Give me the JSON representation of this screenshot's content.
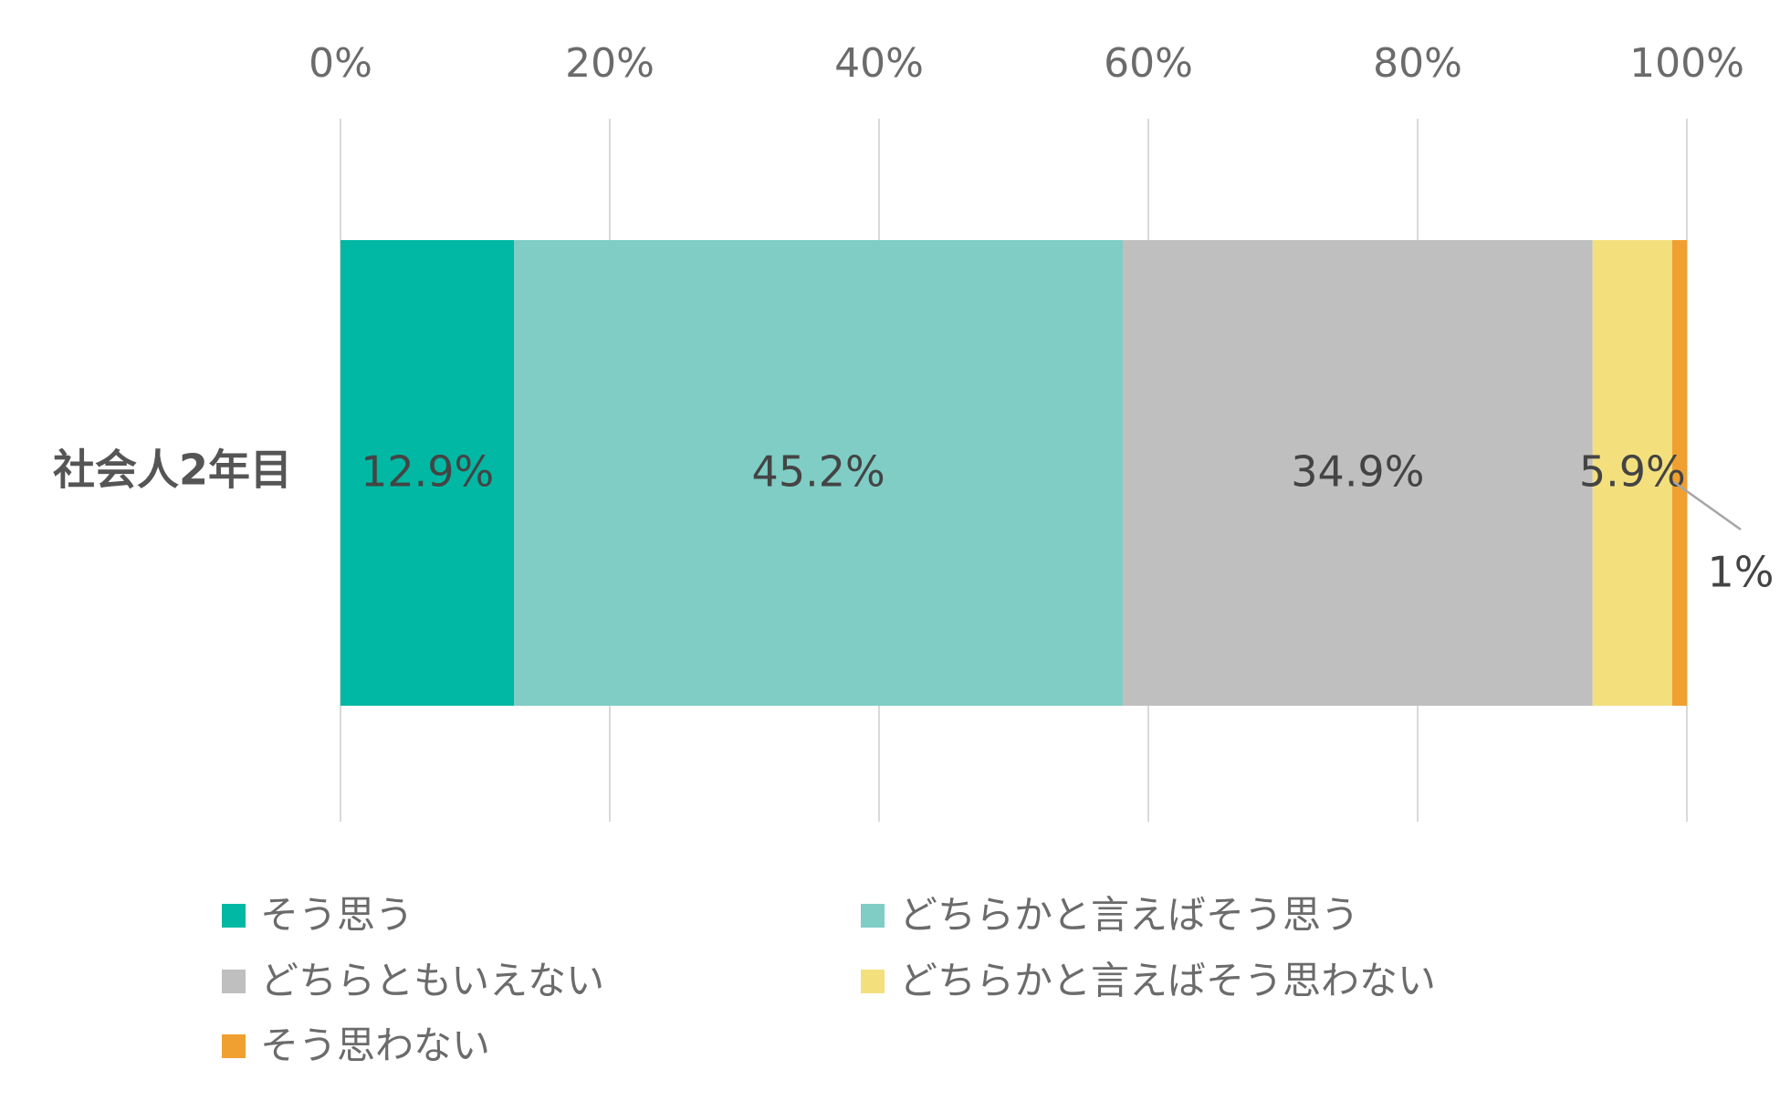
{
  "chart_data": {
    "type": "bar",
    "orientation": "horizontal",
    "stacked": true,
    "percent_stacked": true,
    "categories": [
      "社会人2年目"
    ],
    "series": [
      {
        "name": "そう思う",
        "values": [
          12.9
        ],
        "label": "12.9%",
        "color": "#00b8a3"
      },
      {
        "name": "どちらかと言えばそう思う",
        "values": [
          45.2
        ],
        "label": "45.2%",
        "color": "#7fcdc5"
      },
      {
        "name": "どちらともいえない",
        "values": [
          34.9
        ],
        "label": "34.9%",
        "color": "#bfbfbf"
      },
      {
        "name": "どちらかと言えばそう思わない",
        "values": [
          5.9
        ],
        "label": "5.9%",
        "color": "#f3e07d"
      },
      {
        "name": "そう思わない",
        "values": [
          1.1
        ],
        "label": "1%",
        "color": "#f0a030"
      }
    ],
    "xlim": [
      0,
      100
    ],
    "x_ticks": [
      "0%",
      "20%",
      "40%",
      "60%",
      "80%",
      "100%"
    ],
    "x_tick_values": [
      0,
      20,
      40,
      60,
      80,
      100
    ],
    "x_axis_position": "top",
    "grid": true,
    "legend_position": "bottom",
    "title": "",
    "xlabel": "",
    "ylabel": ""
  }
}
